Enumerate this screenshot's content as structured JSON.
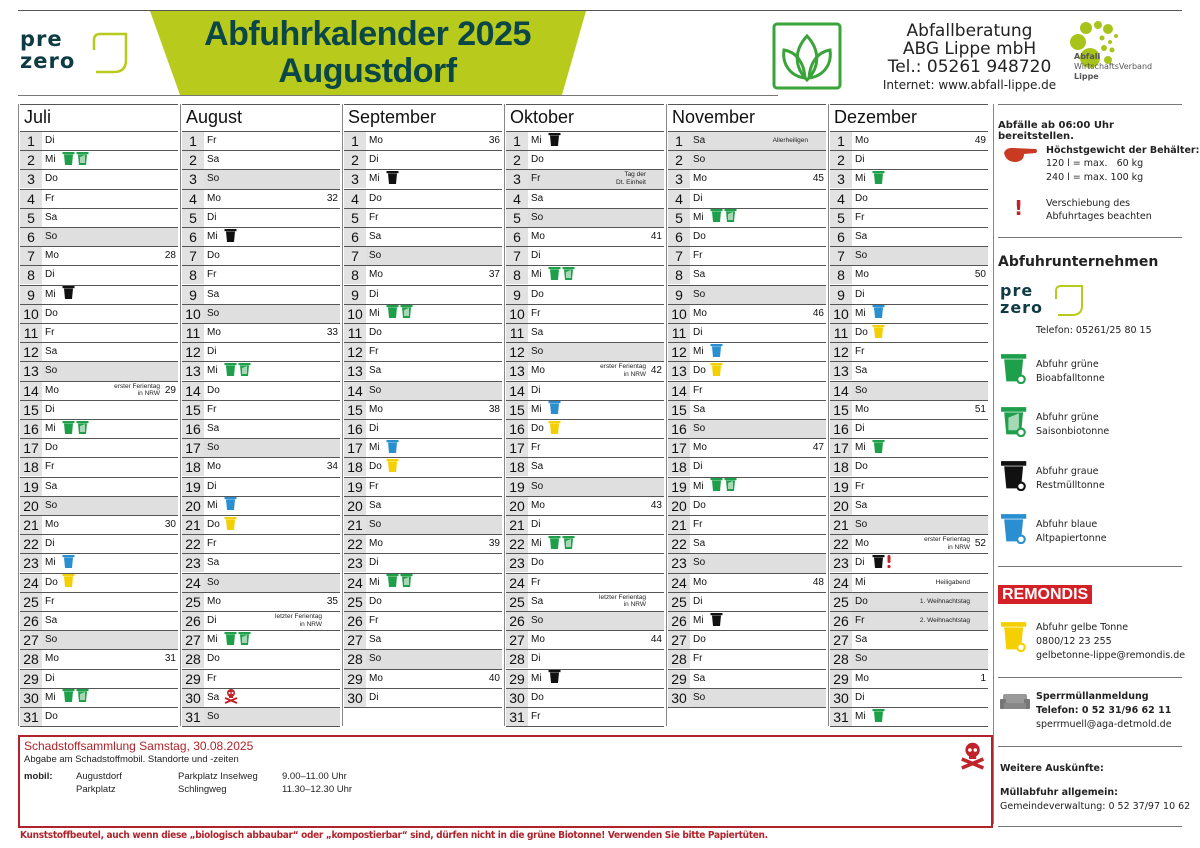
{
  "header": {
    "title_line1": "Abfuhrkalender 2025",
    "title_line2": "Augustdorf",
    "logo_prezero": [
      "pre",
      "zero"
    ],
    "abg": {
      "line1": "Abfallberatung",
      "line2": "ABG Lippe mbH",
      "line3": "Tel.: 05261 948720",
      "line4": "Internet: www.abfall-lippe.de"
    },
    "awv": {
      "line1": "Abfall",
      "line2": "WirtschaftsVerband",
      "line3": "Lippe"
    },
    "colors": {
      "banner": "#b8cb1c",
      "title": "#0c4747",
      "prezero": "#0f3b45"
    }
  },
  "bin_colors": {
    "bio": "#1ea04a",
    "saison": "#1ea04a",
    "rest": "#111111",
    "papier": "#2a8fd0",
    "gelb": "#f5d000",
    "schad": "#c0232a",
    "excl": "#c0232a"
  },
  "months": [
    {
      "name": "Juli",
      "days": [
        {
          "n": "1",
          "wd": "Di"
        },
        {
          "n": "2",
          "wd": "Mi",
          "bins": [
            "bio",
            "saison"
          ]
        },
        {
          "n": "3",
          "wd": "Do"
        },
        {
          "n": "4",
          "wd": "Fr"
        },
        {
          "n": "5",
          "wd": "Sa"
        },
        {
          "n": "6",
          "wd": "So"
        },
        {
          "n": "7",
          "wd": "Mo",
          "week": "28"
        },
        {
          "n": "8",
          "wd": "Di"
        },
        {
          "n": "9",
          "wd": "Mi",
          "bins": [
            "rest"
          ]
        },
        {
          "n": "10",
          "wd": "Do"
        },
        {
          "n": "11",
          "wd": "Fr"
        },
        {
          "n": "12",
          "wd": "Sa"
        },
        {
          "n": "13",
          "wd": "So"
        },
        {
          "n": "14",
          "wd": "Mo",
          "week": "29",
          "note": [
            "erster Ferientag",
            "in NRW"
          ]
        },
        {
          "n": "15",
          "wd": "Di"
        },
        {
          "n": "16",
          "wd": "Mi",
          "bins": [
            "bio",
            "saison"
          ]
        },
        {
          "n": "17",
          "wd": "Do"
        },
        {
          "n": "18",
          "wd": "Fr"
        },
        {
          "n": "19",
          "wd": "Sa"
        },
        {
          "n": "20",
          "wd": "So"
        },
        {
          "n": "21",
          "wd": "Mo",
          "week": "30"
        },
        {
          "n": "22",
          "wd": "Di"
        },
        {
          "n": "23",
          "wd": "Mi",
          "bins": [
            "papier"
          ]
        },
        {
          "n": "24",
          "wd": "Do",
          "bins": [
            "gelb"
          ]
        },
        {
          "n": "25",
          "wd": "Fr"
        },
        {
          "n": "26",
          "wd": "Sa"
        },
        {
          "n": "27",
          "wd": "So"
        },
        {
          "n": "28",
          "wd": "Mo",
          "week": "31"
        },
        {
          "n": "29",
          "wd": "Di"
        },
        {
          "n": "30",
          "wd": "Mi",
          "bins": [
            "bio",
            "saison"
          ]
        },
        {
          "n": "31",
          "wd": "Do"
        }
      ]
    },
    {
      "name": "August",
      "days": [
        {
          "n": "1",
          "wd": "Fr"
        },
        {
          "n": "2",
          "wd": "Sa"
        },
        {
          "n": "3",
          "wd": "So"
        },
        {
          "n": "4",
          "wd": "Mo",
          "week": "32"
        },
        {
          "n": "5",
          "wd": "Di"
        },
        {
          "n": "6",
          "wd": "Mi",
          "bins": [
            "rest"
          ]
        },
        {
          "n": "7",
          "wd": "Do"
        },
        {
          "n": "8",
          "wd": "Fr"
        },
        {
          "n": "9",
          "wd": "Sa"
        },
        {
          "n": "10",
          "wd": "So"
        },
        {
          "n": "11",
          "wd": "Mo",
          "week": "33"
        },
        {
          "n": "12",
          "wd": "Di"
        },
        {
          "n": "13",
          "wd": "Mi",
          "bins": [
            "bio",
            "saison"
          ]
        },
        {
          "n": "14",
          "wd": "Do"
        },
        {
          "n": "15",
          "wd": "Fr"
        },
        {
          "n": "16",
          "wd": "Sa"
        },
        {
          "n": "17",
          "wd": "So"
        },
        {
          "n": "18",
          "wd": "Mo",
          "week": "34"
        },
        {
          "n": "19",
          "wd": "Di"
        },
        {
          "n": "20",
          "wd": "Mi",
          "bins": [
            "papier"
          ]
        },
        {
          "n": "21",
          "wd": "Do",
          "bins": [
            "gelb"
          ]
        },
        {
          "n": "22",
          "wd": "Fr"
        },
        {
          "n": "23",
          "wd": "Sa"
        },
        {
          "n": "24",
          "wd": "So"
        },
        {
          "n": "25",
          "wd": "Mo",
          "week": "35"
        },
        {
          "n": "26",
          "wd": "Di",
          "note": [
            "letzter Ferientag",
            "in NRW"
          ]
        },
        {
          "n": "27",
          "wd": "Mi",
          "bins": [
            "bio",
            "saison"
          ]
        },
        {
          "n": "28",
          "wd": "Do"
        },
        {
          "n": "29",
          "wd": "Fr"
        },
        {
          "n": "30",
          "wd": "Sa",
          "bins": [
            "schad"
          ]
        },
        {
          "n": "31",
          "wd": "So"
        }
      ]
    },
    {
      "name": "September",
      "days": [
        {
          "n": "1",
          "wd": "Mo",
          "week": "36"
        },
        {
          "n": "2",
          "wd": "Di"
        },
        {
          "n": "3",
          "wd": "Mi",
          "bins": [
            "rest"
          ]
        },
        {
          "n": "4",
          "wd": "Do"
        },
        {
          "n": "5",
          "wd": "Fr"
        },
        {
          "n": "6",
          "wd": "Sa"
        },
        {
          "n": "7",
          "wd": "So"
        },
        {
          "n": "8",
          "wd": "Mo",
          "week": "37"
        },
        {
          "n": "9",
          "wd": "Di"
        },
        {
          "n": "10",
          "wd": "Mi",
          "bins": [
            "bio",
            "saison"
          ]
        },
        {
          "n": "11",
          "wd": "Do"
        },
        {
          "n": "12",
          "wd": "Fr"
        },
        {
          "n": "13",
          "wd": "Sa"
        },
        {
          "n": "14",
          "wd": "So"
        },
        {
          "n": "15",
          "wd": "Mo",
          "week": "38"
        },
        {
          "n": "16",
          "wd": "Di"
        },
        {
          "n": "17",
          "wd": "Mi",
          "bins": [
            "papier"
          ]
        },
        {
          "n": "18",
          "wd": "Do",
          "bins": [
            "gelb"
          ]
        },
        {
          "n": "19",
          "wd": "Fr"
        },
        {
          "n": "20",
          "wd": "Sa"
        },
        {
          "n": "21",
          "wd": "So"
        },
        {
          "n": "22",
          "wd": "Mo",
          "week": "39"
        },
        {
          "n": "23",
          "wd": "Di"
        },
        {
          "n": "24",
          "wd": "Mi",
          "bins": [
            "bio",
            "saison"
          ]
        },
        {
          "n": "25",
          "wd": "Do"
        },
        {
          "n": "26",
          "wd": "Fr"
        },
        {
          "n": "27",
          "wd": "Sa"
        },
        {
          "n": "28",
          "wd": "So"
        },
        {
          "n": "29",
          "wd": "Mo",
          "week": "40"
        },
        {
          "n": "30",
          "wd": "Di"
        }
      ]
    },
    {
      "name": "Oktober",
      "days": [
        {
          "n": "1",
          "wd": "Mi",
          "bins": [
            "rest"
          ]
        },
        {
          "n": "2",
          "wd": "Do"
        },
        {
          "n": "3",
          "wd": "Fr",
          "holiday": true,
          "note": [
            "Tag der",
            "Dt. Einheit"
          ]
        },
        {
          "n": "4",
          "wd": "Sa"
        },
        {
          "n": "5",
          "wd": "So"
        },
        {
          "n": "6",
          "wd": "Mo",
          "week": "41"
        },
        {
          "n": "7",
          "wd": "Di"
        },
        {
          "n": "8",
          "wd": "Mi",
          "bins": [
            "bio",
            "saison"
          ]
        },
        {
          "n": "9",
          "wd": "Do"
        },
        {
          "n": "10",
          "wd": "Fr"
        },
        {
          "n": "11",
          "wd": "Sa"
        },
        {
          "n": "12",
          "wd": "So"
        },
        {
          "n": "13",
          "wd": "Mo",
          "week": "42",
          "note": [
            "erster Ferientag",
            "in NRW"
          ]
        },
        {
          "n": "14",
          "wd": "Di"
        },
        {
          "n": "15",
          "wd": "Mi",
          "bins": [
            "papier"
          ]
        },
        {
          "n": "16",
          "wd": "Do",
          "bins": [
            "gelb"
          ]
        },
        {
          "n": "17",
          "wd": "Fr"
        },
        {
          "n": "18",
          "wd": "Sa"
        },
        {
          "n": "19",
          "wd": "So"
        },
        {
          "n": "20",
          "wd": "Mo",
          "week": "43"
        },
        {
          "n": "21",
          "wd": "Di"
        },
        {
          "n": "22",
          "wd": "Mi",
          "bins": [
            "bio",
            "saison"
          ]
        },
        {
          "n": "23",
          "wd": "Do"
        },
        {
          "n": "24",
          "wd": "Fr"
        },
        {
          "n": "25",
          "wd": "Sa",
          "note": [
            "letzter Ferientag",
            "in NRW"
          ]
        },
        {
          "n": "26",
          "wd": "So"
        },
        {
          "n": "27",
          "wd": "Mo",
          "week": "44"
        },
        {
          "n": "28",
          "wd": "Di"
        },
        {
          "n": "29",
          "wd": "Mi",
          "bins": [
            "rest"
          ]
        },
        {
          "n": "30",
          "wd": "Do"
        },
        {
          "n": "31",
          "wd": "Fr"
        }
      ]
    },
    {
      "name": "November",
      "days": [
        {
          "n": "1",
          "wd": "Sa",
          "holiday": true,
          "note": [
            "Allerheiligen"
          ]
        },
        {
          "n": "2",
          "wd": "So"
        },
        {
          "n": "3",
          "wd": "Mo",
          "week": "45"
        },
        {
          "n": "4",
          "wd": "Di"
        },
        {
          "n": "5",
          "wd": "Mi",
          "bins": [
            "bio",
            "saison"
          ]
        },
        {
          "n": "6",
          "wd": "Do"
        },
        {
          "n": "7",
          "wd": "Fr"
        },
        {
          "n": "8",
          "wd": "Sa"
        },
        {
          "n": "9",
          "wd": "So"
        },
        {
          "n": "10",
          "wd": "Mo",
          "week": "46"
        },
        {
          "n": "11",
          "wd": "Di"
        },
        {
          "n": "12",
          "wd": "Mi",
          "bins": [
            "papier"
          ]
        },
        {
          "n": "13",
          "wd": "Do",
          "bins": [
            "gelb"
          ]
        },
        {
          "n": "14",
          "wd": "Fr"
        },
        {
          "n": "15",
          "wd": "Sa"
        },
        {
          "n": "16",
          "wd": "So"
        },
        {
          "n": "17",
          "wd": "Mo",
          "week": "47"
        },
        {
          "n": "18",
          "wd": "Di"
        },
        {
          "n": "19",
          "wd": "Mi",
          "bins": [
            "bio",
            "saison"
          ]
        },
        {
          "n": "20",
          "wd": "Do"
        },
        {
          "n": "21",
          "wd": "Fr"
        },
        {
          "n": "22",
          "wd": "Sa"
        },
        {
          "n": "23",
          "wd": "So"
        },
        {
          "n": "24",
          "wd": "Mo",
          "week": "48"
        },
        {
          "n": "25",
          "wd": "Di"
        },
        {
          "n": "26",
          "wd": "Mi",
          "bins": [
            "rest"
          ]
        },
        {
          "n": "27",
          "wd": "Do"
        },
        {
          "n": "28",
          "wd": "Fr"
        },
        {
          "n": "29",
          "wd": "Sa"
        },
        {
          "n": "30",
          "wd": "So"
        }
      ]
    },
    {
      "name": "Dezember",
      "days": [
        {
          "n": "1",
          "wd": "Mo",
          "week": "49"
        },
        {
          "n": "2",
          "wd": "Di"
        },
        {
          "n": "3",
          "wd": "Mi",
          "bins": [
            "bio"
          ]
        },
        {
          "n": "4",
          "wd": "Do"
        },
        {
          "n": "5",
          "wd": "Fr"
        },
        {
          "n": "6",
          "wd": "Sa"
        },
        {
          "n": "7",
          "wd": "So"
        },
        {
          "n": "8",
          "wd": "Mo",
          "week": "50"
        },
        {
          "n": "9",
          "wd": "Di"
        },
        {
          "n": "10",
          "wd": "Mi",
          "bins": [
            "papier"
          ]
        },
        {
          "n": "11",
          "wd": "Do",
          "bins": [
            "gelb"
          ]
        },
        {
          "n": "12",
          "wd": "Fr"
        },
        {
          "n": "13",
          "wd": "Sa"
        },
        {
          "n": "14",
          "wd": "So"
        },
        {
          "n": "15",
          "wd": "Mo",
          "week": "51"
        },
        {
          "n": "16",
          "wd": "Di"
        },
        {
          "n": "17",
          "wd": "Mi",
          "bins": [
            "bio"
          ]
        },
        {
          "n": "18",
          "wd": "Do"
        },
        {
          "n": "19",
          "wd": "Fr"
        },
        {
          "n": "20",
          "wd": "Sa"
        },
        {
          "n": "21",
          "wd": "So"
        },
        {
          "n": "22",
          "wd": "Mo",
          "week": "52",
          "note": [
            "erster Ferientag",
            "in NRW"
          ]
        },
        {
          "n": "23",
          "wd": "Di",
          "bins": [
            "rest",
            "excl"
          ]
        },
        {
          "n": "24",
          "wd": "Mi",
          "note": [
            "Heiligabend"
          ]
        },
        {
          "n": "25",
          "wd": "Do",
          "holiday": true,
          "note": [
            "1. Weihnachtstag"
          ]
        },
        {
          "n": "26",
          "wd": "Fr",
          "holiday": true,
          "note": [
            "2. Weihnachtstag"
          ]
        },
        {
          "n": "27",
          "wd": "Sa"
        },
        {
          "n": "28",
          "wd": "So"
        },
        {
          "n": "29",
          "wd": "Mo",
          "week": "1"
        },
        {
          "n": "30",
          "wd": "Di"
        },
        {
          "n": "31",
          "wd": "Mi",
          "bins": [
            "bio"
          ]
        }
      ]
    }
  ],
  "sidebar": {
    "notice": "Abfälle ab 06:00 Uhr bereitstellen.",
    "weight_title": "Höchstgewicht der Behälter:",
    "weight_120": "120 l = max.   60 kg",
    "weight_240": "240 l = max. 100 kg",
    "shift_line1": "Verschiebung des",
    "shift_line2": "Abfuhrtages beachten",
    "companies_title": "Abfuhrunternehmen",
    "prezero_phone": "Telefon: 05261/25 80 15",
    "legend": [
      {
        "type": "bio",
        "line1": "Abfuhr grüne",
        "line2": "Bioabfalltonne"
      },
      {
        "type": "saison",
        "line1": "Abfuhr grüne",
        "line2": "Saisonbiotonne"
      },
      {
        "type": "rest",
        "line1": "Abfuhr graue",
        "line2": "Restmülltonne"
      },
      {
        "type": "papier",
        "line1": "Abfuhr blaue",
        "line2": "Altpapiertonne"
      }
    ],
    "remondis_logo": "REMONDIS",
    "gelb_line1": "Abfuhr gelbe Tonne",
    "gelb_line2": "0800/12 23 255",
    "gelb_line3": "gelbetonne-lippe@remondis.de",
    "sperr_title": "Sperrmüllanmeldung",
    "sperr_phone": "Telefon: 0 52 31/96 62 11",
    "sperr_mail": "sperrmuell@aga-detmold.de",
    "more_title": "Weitere Auskünfte:",
    "general_title": "Müllabfuhr allgemein:",
    "general_phone": "Gemeindeverwaltung: 0 52 37/97 10 62"
  },
  "hazard": {
    "title": "Schadstoffsammlung Samstag, 30.08.2025",
    "subtitle": "Abgabe am Schadstoffmobil. Standorte und -zeiten",
    "label": "mobil:",
    "rows": [
      {
        "place": "Augustdorf",
        "location": "Parkplatz Inselweg",
        "time": "9.00–11.00 Uhr"
      },
      {
        "place": "Parkplatz",
        "location": "Schlingweg",
        "time": "11.30–12.30 Uhr"
      }
    ]
  },
  "footer": "Kunststoffbeutel, auch wenn diese „biologisch abbaubar“ oder „kompostierbar“ sind, dürfen nicht in die grüne Biotonne! Verwenden Sie bitte Papiertüten."
}
